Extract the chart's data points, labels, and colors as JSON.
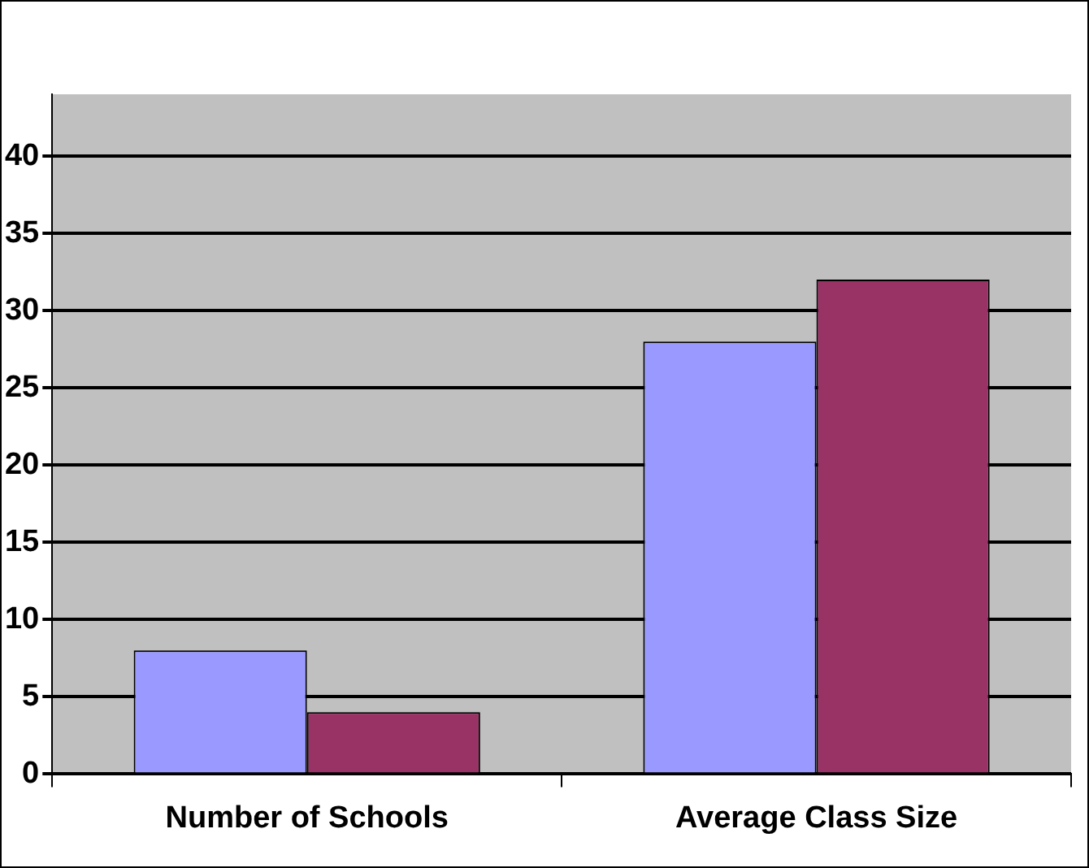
{
  "chart_data": {
    "type": "bar",
    "categories": [
      "Number of Schools",
      "Average Class Size"
    ],
    "series": [
      {
        "color": "#9999ff",
        "values": [
          8,
          28
        ]
      },
      {
        "color": "#993366",
        "values": [
          4,
          32
        ]
      }
    ],
    "ylim": [
      0,
      44
    ],
    "yticks": [
      0,
      5,
      10,
      15,
      20,
      25,
      30,
      35,
      40
    ],
    "grid": "y",
    "legend": false
  }
}
